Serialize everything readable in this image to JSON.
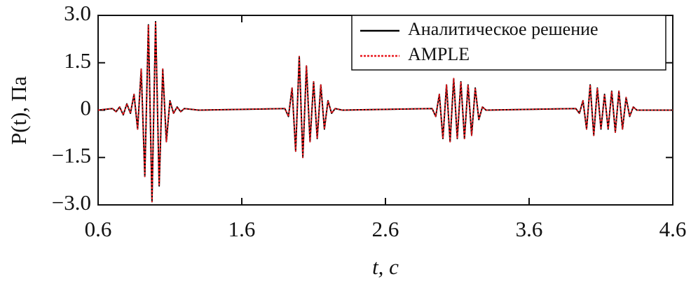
{
  "chart_data": {
    "type": "line",
    "x_label": "t, c",
    "y_label": "P(t), Па",
    "x": [
      0.6,
      0.7,
      0.725,
      0.75,
      0.775,
      0.8,
      0.825,
      0.85,
      0.875,
      0.9,
      0.925,
      0.95,
      0.975,
      1.0,
      1.025,
      1.05,
      1.075,
      1.1,
      1.125,
      1.15,
      1.175,
      1.2,
      1.3,
      1.9,
      1.925,
      1.95,
      1.975,
      2.0,
      2.025,
      2.05,
      2.075,
      2.1,
      2.125,
      2.15,
      2.175,
      2.2,
      2.225,
      2.25,
      2.3,
      2.925,
      2.95,
      2.975,
      3.0,
      3.025,
      3.05,
      3.075,
      3.1,
      3.125,
      3.15,
      3.175,
      3.2,
      3.225,
      3.25,
      3.275,
      3.3,
      3.925,
      3.95,
      3.975,
      4.0,
      4.025,
      4.05,
      4.075,
      4.1,
      4.125,
      4.15,
      4.175,
      4.2,
      4.225,
      4.25,
      4.275,
      4.3,
      4.325,
      4.35,
      4.6
    ],
    "series": [
      {
        "name": "Аналитическое решение",
        "color": "#000000",
        "dash": "solid",
        "values": [
          0,
          0.05,
          -0.05,
          0.1,
          -0.15,
          0.2,
          -0.1,
          0.5,
          -0.6,
          1.3,
          -2.1,
          2.7,
          -2.9,
          2.8,
          -2.4,
          1.3,
          -1.0,
          0.3,
          -0.1,
          0.1,
          -0.05,
          0.05,
          0,
          0.05,
          -0.2,
          0.7,
          -1.3,
          1.7,
          -1.5,
          1.4,
          -1.0,
          0.9,
          -0.9,
          0.8,
          -0.6,
          0.3,
          -0.1,
          0.05,
          0,
          0.05,
          -0.2,
          0.5,
          -0.9,
          0.8,
          -1.0,
          1.0,
          -0.9,
          0.9,
          -0.9,
          0.8,
          -0.8,
          0.7,
          -0.3,
          0.1,
          0,
          0.05,
          -0.1,
          0.3,
          -0.6,
          0.8,
          -0.8,
          0.7,
          -0.6,
          0.5,
          -0.6,
          0.6,
          -0.7,
          0.6,
          -0.6,
          0.4,
          -0.2,
          0.1,
          0,
          0
        ]
      },
      {
        "name": "AMPLE",
        "color": "#e8161b",
        "dash": "dotted",
        "values": [
          0,
          0.05,
          -0.05,
          0.1,
          -0.15,
          0.2,
          -0.1,
          0.5,
          -0.6,
          1.3,
          -2.1,
          2.7,
          -2.9,
          2.8,
          -2.4,
          1.3,
          -1.0,
          0.3,
          -0.1,
          0.1,
          -0.05,
          0.05,
          0,
          0.05,
          -0.2,
          0.7,
          -1.3,
          1.7,
          -1.5,
          1.4,
          -1.0,
          0.9,
          -0.9,
          0.8,
          -0.6,
          0.3,
          -0.1,
          0.05,
          0,
          0.05,
          -0.2,
          0.5,
          -0.9,
          0.8,
          -1.0,
          1.0,
          -0.9,
          0.9,
          -0.9,
          0.8,
          -0.8,
          0.7,
          -0.3,
          0.1,
          0,
          0.05,
          -0.1,
          0.3,
          -0.6,
          0.8,
          -0.8,
          0.7,
          -0.6,
          0.5,
          -0.6,
          0.6,
          -0.7,
          0.6,
          -0.6,
          0.4,
          -0.2,
          0.1,
          0,
          0
        ]
      }
    ],
    "xlim": [
      0.6,
      4.6
    ],
    "xticks": [
      0.6,
      1.6,
      2.6,
      3.6,
      4.6
    ],
    "ylim": [
      -3,
      3
    ],
    "yticks": [
      {
        "value": 3,
        "label": "3.0"
      },
      {
        "value": 1.5,
        "label": "1.5"
      },
      0,
      {
        "value": -1.5,
        "label": "−1.5"
      },
      {
        "value": -3,
        "label": "−3.0"
      }
    ],
    "legend": "upper right",
    "grid": false
  }
}
